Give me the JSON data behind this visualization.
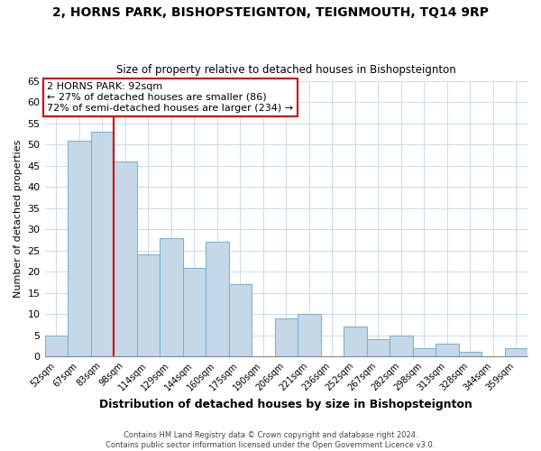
{
  "title": "2, HORNS PARK, BISHOPSTEIGNTON, TEIGNMOUTH, TQ14 9RP",
  "subtitle": "Size of property relative to detached houses in Bishopsteignton",
  "xlabel": "Distribution of detached houses by size in Bishopsteignton",
  "ylabel": "Number of detached properties",
  "footer_line1": "Contains HM Land Registry data © Crown copyright and database right 2024.",
  "footer_line2": "Contains public sector information licensed under the Open Government Licence v3.0.",
  "annotation_line1": "2 HORNS PARK: 92sqm",
  "annotation_line2": "← 27% of detached houses are smaller (86)",
  "annotation_line3": "72% of semi-detached houses are larger (234) →",
  "bar_labels": [
    "52sqm",
    "67sqm",
    "83sqm",
    "98sqm",
    "114sqm",
    "129sqm",
    "144sqm",
    "160sqm",
    "175sqm",
    "190sqm",
    "206sqm",
    "221sqm",
    "236sqm",
    "252sqm",
    "267sqm",
    "282sqm",
    "298sqm",
    "313sqm",
    "328sqm",
    "344sqm",
    "359sqm"
  ],
  "bar_values": [
    5,
    51,
    53,
    46,
    24,
    28,
    21,
    27,
    17,
    0,
    9,
    10,
    0,
    7,
    4,
    5,
    2,
    3,
    1,
    0,
    2
  ],
  "bar_color": "#c5d8e8",
  "bar_edge_color": "#7ab4d4",
  "vline_color": "#cc0000",
  "ylim": [
    0,
    65
  ],
  "yticks": [
    0,
    5,
    10,
    15,
    20,
    25,
    30,
    35,
    40,
    45,
    50,
    55,
    60,
    65
  ],
  "annotation_box_color": "#ffffff",
  "annotation_box_edge": "#cc0000",
  "background_color": "#ffffff",
  "grid_color": "#c8daea"
}
